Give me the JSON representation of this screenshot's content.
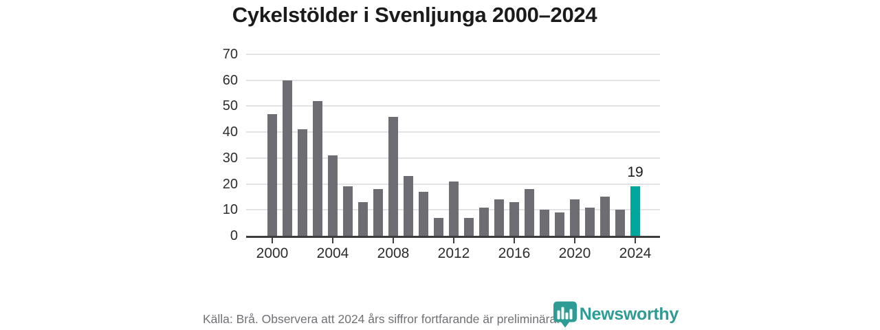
{
  "title": "Cykelstölder i Svenljunga 2000–2024",
  "footer": {
    "source_note": "Källa: Brå. Observera att 2024 års siffror fortfarande är preliminära.",
    "brand": "Newsworthy"
  },
  "colors": {
    "bar": "#6d6d73",
    "highlight": "#00a59b",
    "brand": "#2d9c94",
    "grid": "#e3e3e5",
    "axis": "#3c3c3c",
    "text_dark": "#1b1b1b",
    "axis_text": "#2d2d2d",
    "source_text": "#707075",
    "background": "#ffffff"
  },
  "icons": {
    "logo": "newsworthy-shield-bar-chart-icon"
  },
  "chart_data": {
    "type": "bar",
    "title": "Cykelstölder i Svenljunga 2000–2024",
    "x": [
      2000,
      2001,
      2002,
      2003,
      2004,
      2005,
      2006,
      2007,
      2008,
      2009,
      2010,
      2011,
      2012,
      2013,
      2014,
      2015,
      2016,
      2017,
      2018,
      2019,
      2020,
      2021,
      2022,
      2023,
      2024
    ],
    "values": [
      47,
      60,
      41,
      52,
      31,
      19,
      13,
      18,
      46,
      23,
      17,
      7,
      21,
      7,
      11,
      14,
      13,
      18,
      10,
      9,
      14,
      11,
      15,
      10,
      19
    ],
    "highlight_index": 24,
    "highlight_value_label": "19",
    "ylim": [
      0,
      70
    ],
    "y_ticks": [
      0,
      10,
      20,
      30,
      40,
      50,
      60,
      70
    ],
    "x_tick_labels": [
      "2000",
      "2004",
      "2008",
      "2012",
      "2016",
      "2020",
      "2024"
    ],
    "grid": true,
    "legend": false
  }
}
